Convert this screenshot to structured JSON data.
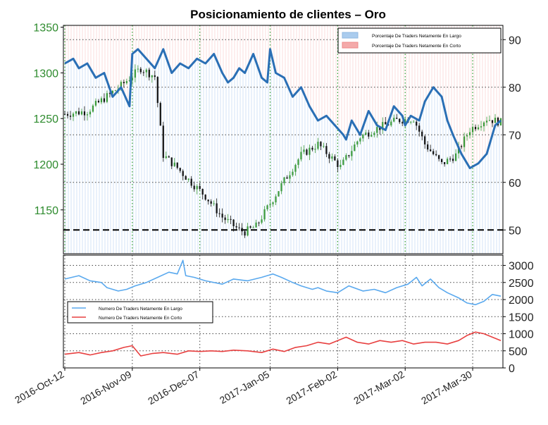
{
  "chart_data": [
    {
      "type": "candlestick",
      "title": "Posicionamiento de clientes – Oro",
      "y_left": {
        "ticks": [
          1150,
          1200,
          1250,
          1300,
          1350
        ],
        "range": [
          1102,
          1352
        ],
        "color": "#2e8b2e"
      },
      "y_right": {
        "ticks": [
          50,
          60,
          70,
          80,
          90
        ],
        "range": [
          45,
          93
        ]
      },
      "reference_line": {
        "axis": "right",
        "value": 50,
        "style": "dashed"
      },
      "legend": {
        "position": "top-right",
        "entries": [
          {
            "label": "Porcentaje De Traders Netamente En Largo",
            "color": "#aaccee"
          },
          {
            "label": "Porcentaje De Traders Netamente En Corto",
            "color": "#f4aaaa"
          }
        ]
      },
      "price_anchors": {
        "x": [
          0,
          8,
          14,
          20,
          27,
          32,
          35,
          40,
          44,
          50,
          56,
          62,
          64,
          68,
          72,
          78,
          84,
          90,
          98,
          105,
          110,
          118,
          124,
          128,
          134,
          139,
          144,
          150,
          155
        ],
        "close": [
          1255,
          1258,
          1272,
          1286,
          1305,
          1296,
          1210,
          1196,
          1183,
          1165,
          1142,
          1128,
          1126,
          1132,
          1152,
          1182,
          1210,
          1222,
          1197,
          1230,
          1238,
          1248,
          1250,
          1222,
          1200,
          1210,
          1238,
          1250,
          1246
        ]
      },
      "long_pct_series": {
        "x": [
          0,
          3,
          5,
          8,
          11,
          14,
          17,
          20,
          23,
          24,
          26,
          29,
          32,
          35,
          38,
          41,
          44,
          47,
          50,
          53,
          56,
          58,
          60,
          62,
          64,
          67,
          70,
          72,
          73,
          75,
          78,
          81,
          84,
          87,
          90,
          93,
          96,
          99,
          100,
          102,
          105,
          108,
          111,
          114,
          117,
          120,
          121,
          123,
          126,
          128,
          131,
          134,
          136,
          138,
          141,
          144,
          147,
          150,
          153,
          155
        ],
        "values": [
          85,
          86,
          84,
          85,
          82,
          83,
          78,
          80,
          76,
          87,
          88,
          86,
          84,
          88,
          83,
          85,
          84,
          86,
          85,
          87,
          83,
          81,
          82,
          84,
          83,
          87,
          82,
          81,
          88,
          83,
          82,
          78,
          80,
          76,
          73,
          74,
          72,
          70,
          69,
          73,
          70,
          75,
          72,
          71,
          76,
          74,
          72,
          74,
          73,
          77,
          80,
          78,
          73,
          70,
          66,
          63,
          64,
          66,
          72,
          73
        ]
      }
    },
    {
      "type": "line",
      "y_ticks": [
        0,
        500,
        1000,
        1500,
        2000,
        2500,
        3000
      ],
      "ylim": [
        0,
        3300
      ],
      "x_tick_labels": [
        "2016-Oct-12",
        "2016-Nov-09",
        "2016-Dec-07",
        "2017-Jan-05",
        "2017-Feb-02",
        "2017-Mar-02",
        "2017-Mar-30"
      ],
      "x_tick_positions": [
        0,
        24,
        48,
        73,
        97,
        121,
        145
      ],
      "legend": {
        "position": "center-left"
      },
      "series": [
        {
          "name": "Numero De Traders Netamente En Largo",
          "color": "#5aa9ee",
          "x": [
            0,
            5,
            9,
            13,
            15,
            19,
            22,
            25,
            29,
            33,
            37,
            40,
            42,
            43,
            46,
            50,
            56,
            60,
            65,
            70,
            74,
            77,
            81,
            84,
            88,
            90,
            93,
            97,
            101,
            106,
            110,
            114,
            118,
            122,
            125,
            127,
            130,
            133,
            136,
            140,
            143,
            146,
            149,
            152,
            155
          ],
          "values": [
            2600,
            2700,
            2550,
            2500,
            2350,
            2250,
            2300,
            2400,
            2500,
            2650,
            2800,
            2750,
            3150,
            2700,
            2650,
            2550,
            2450,
            2600,
            2550,
            2650,
            2750,
            2650,
            2500,
            2400,
            2300,
            2350,
            2250,
            2200,
            2400,
            2250,
            2300,
            2200,
            2350,
            2450,
            2650,
            2400,
            2600,
            2350,
            2200,
            2050,
            1900,
            1850,
            1950,
            2150,
            2100
          ]
        },
        {
          "name": "Numero De Traders Netamente En Corto",
          "color": "#e84040",
          "x": [
            0,
            5,
            9,
            13,
            17,
            21,
            24,
            27,
            31,
            35,
            40,
            44,
            48,
            52,
            56,
            60,
            65,
            70,
            74,
            78,
            82,
            86,
            90,
            94,
            97,
            100,
            104,
            108,
            112,
            116,
            120,
            124,
            128,
            132,
            136,
            140,
            143,
            146,
            149,
            152,
            155
          ],
          "values": [
            400,
            450,
            380,
            450,
            500,
            600,
            650,
            350,
            420,
            450,
            400,
            500,
            480,
            500,
            480,
            520,
            500,
            450,
            550,
            480,
            600,
            650,
            750,
            700,
            800,
            900,
            750,
            700,
            800,
            750,
            800,
            700,
            750,
            750,
            700,
            800,
            950,
            1050,
            1000,
            900,
            800
          ]
        }
      ]
    }
  ]
}
